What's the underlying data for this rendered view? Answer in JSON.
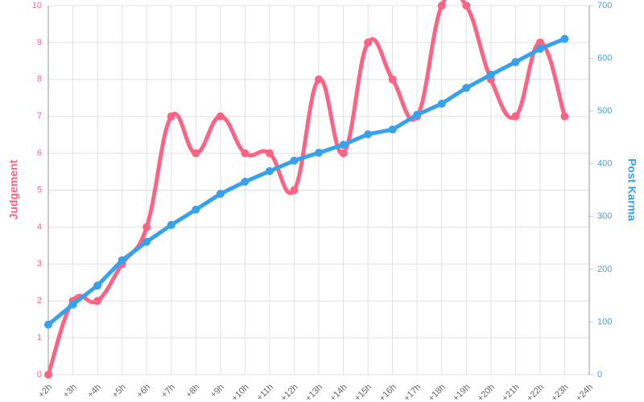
{
  "chart_data": {
    "type": "line",
    "categories": [
      "+2h",
      "+3h",
      "+4h",
      "+5h",
      "+6h",
      "+7h",
      "+8h",
      "+9h",
      "+10h",
      "+11h",
      "+12h",
      "+13h",
      "+14h",
      "+15h",
      "+16h",
      "+17h",
      "+18h",
      "+19h",
      "+20h",
      "+21h",
      "+22h",
      "+23h",
      "+24h"
    ],
    "ylabel": "Judgement",
    "y2label": "Post Karma",
    "ylim": [
      0,
      10
    ],
    "yticks": [
      0,
      1,
      2,
      3,
      4,
      5,
      6,
      7,
      8,
      9,
      10
    ],
    "y2lim": [
      0,
      700
    ],
    "y2ticks": [
      0,
      100,
      200,
      300,
      400,
      500,
      600,
      700
    ],
    "grid": true,
    "series": [
      {
        "name": "Judgement",
        "color": "#ff6384",
        "smooth": true,
        "values": [
          0,
          2,
          2,
          3,
          4,
          7,
          6,
          7,
          6,
          6,
          5,
          8,
          6,
          9,
          8,
          7,
          10,
          10,
          8,
          7,
          9,
          7,
          null
        ]
      },
      {
        "name": "Post Karma",
        "color": "#36a2eb",
        "axis": "y2",
        "smooth": false,
        "values": [
          95,
          133,
          169,
          217,
          252,
          284,
          313,
          343,
          366,
          386,
          406,
          421,
          436,
          456,
          465,
          493,
          514,
          544,
          569,
          593,
          618,
          637,
          null
        ]
      }
    ]
  }
}
